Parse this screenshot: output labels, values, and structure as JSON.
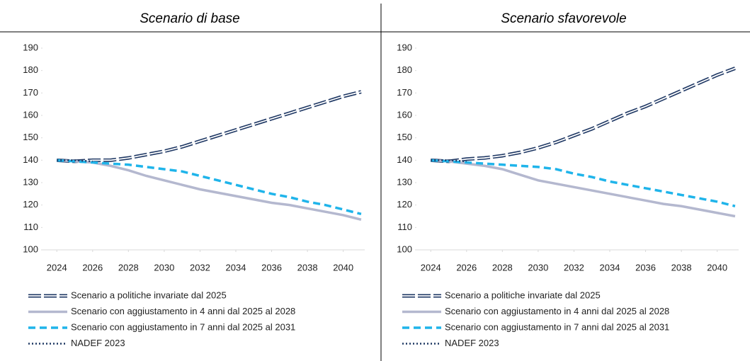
{
  "chart_data": [
    {
      "type": "line",
      "title": "Scenario di base",
      "x": [
        2024,
        2025,
        2026,
        2027,
        2028,
        2029,
        2030,
        2031,
        2032,
        2033,
        2034,
        2035,
        2036,
        2037,
        2038,
        2039,
        2040,
        2041
      ],
      "xlim": [
        2023.2,
        2041.2
      ],
      "xticks": [
        2024,
        2026,
        2028,
        2030,
        2032,
        2034,
        2036,
        2038,
        2040
      ],
      "ylim": [
        100,
        190
      ],
      "yticks": [
        100,
        110,
        120,
        130,
        140,
        150,
        160,
        170,
        180,
        190
      ],
      "series": [
        {
          "name": "Scenario a politiche invariate dal 2025",
          "color": "#1f3864",
          "style": "double",
          "values": [
            140,
            139.5,
            140,
            140,
            141,
            142.5,
            144,
            146,
            148.5,
            151,
            153.5,
            156,
            158.5,
            161,
            163.5,
            166,
            168.5,
            170.5
          ]
        },
        {
          "name": "Scenario con aggiustamento in 4 anni dal 2025 al 2028",
          "color": "#b4b8cf",
          "style": "solid",
          "values": [
            140,
            139.5,
            139,
            137.5,
            135.5,
            133,
            131,
            129,
            127,
            125.5,
            124,
            122.5,
            121,
            120,
            118.5,
            117,
            115.5,
            113.5
          ]
        },
        {
          "name": "Scenario con aggiustamento in 7 anni dal 2025 al 2031",
          "color": "#1fb4ea",
          "style": "dashed",
          "values": [
            140,
            139.5,
            139,
            138.5,
            138,
            137,
            136,
            135,
            133,
            131,
            129,
            127,
            125,
            123.5,
            121.5,
            120,
            118,
            116
          ]
        },
        {
          "name": "NADEF 2023",
          "color": "#1f3864",
          "style": "dotted",
          "values": [
            140,
            140,
            139.5,
            null,
            null,
            null,
            null,
            null,
            null,
            null,
            null,
            null,
            null,
            null,
            null,
            null,
            null,
            null
          ]
        }
      ]
    },
    {
      "type": "line",
      "title": "Scenario sfavorevole",
      "x": [
        2024,
        2025,
        2026,
        2027,
        2028,
        2029,
        2030,
        2031,
        2032,
        2033,
        2034,
        2035,
        2036,
        2037,
        2038,
        2039,
        2040,
        2041
      ],
      "xlim": [
        2023.2,
        2041.2
      ],
      "xticks": [
        2024,
        2026,
        2028,
        2030,
        2032,
        2034,
        2036,
        2038,
        2040
      ],
      "ylim": [
        100,
        190
      ],
      "yticks": [
        100,
        110,
        120,
        130,
        140,
        150,
        160,
        170,
        180,
        190
      ],
      "series": [
        {
          "name": "Scenario a politiche invariate dal 2025",
          "color": "#1f3864",
          "style": "double",
          "values": [
            140,
            139.5,
            140.5,
            141,
            142,
            143.5,
            145.5,
            148,
            151,
            154,
            157.5,
            161,
            164,
            167.5,
            171,
            174.5,
            178,
            181
          ]
        },
        {
          "name": "Scenario con aggiustamento in 4 anni dal 2025 al 2028",
          "color": "#b4b8cf",
          "style": "solid",
          "values": [
            140,
            139.5,
            138.5,
            137.5,
            136,
            133.5,
            131,
            129.5,
            128,
            126.5,
            125,
            123.5,
            122,
            120.5,
            119.5,
            118,
            116.5,
            115
          ]
        },
        {
          "name": "Scenario con aggiustamento in 7 anni dal 2025 al 2031",
          "color": "#1fb4ea",
          "style": "dashed",
          "values": [
            140,
            139.5,
            139,
            138.5,
            138,
            137.5,
            137,
            136,
            134,
            132.5,
            130.5,
            129,
            127.5,
            126,
            124.5,
            123,
            121.5,
            119.5
          ]
        },
        {
          "name": "NADEF 2023",
          "color": "#1f3864",
          "style": "dotted",
          "values": [
            140,
            140,
            139.5,
            null,
            null,
            null,
            null,
            null,
            null,
            null,
            null,
            null,
            null,
            null,
            null,
            null,
            null,
            null
          ]
        }
      ]
    }
  ]
}
